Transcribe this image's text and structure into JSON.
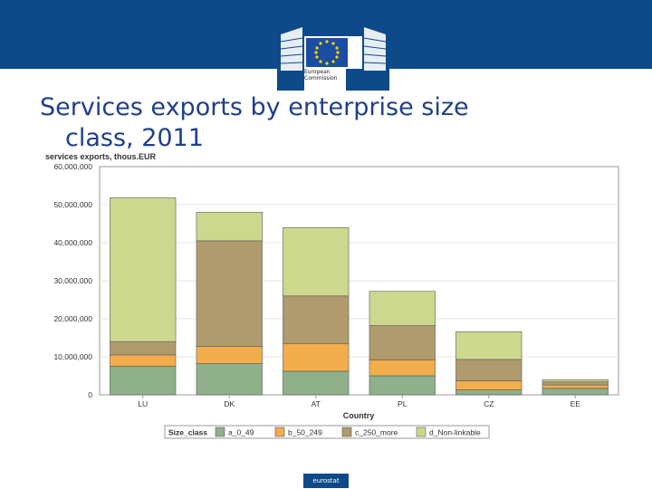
{
  "header": {
    "logo_line1": "European",
    "logo_line2": "Commission"
  },
  "title": {
    "line1": "Services exports by enterprise size",
    "line2": "class, 2011"
  },
  "footer": {
    "badge": "eurostat"
  },
  "colors": {
    "header_band": "#0e4a8a",
    "title_text": "#1f3f8c",
    "plot_border": "#9a9a9a"
  },
  "chart_data": {
    "type": "bar",
    "stacked": true,
    "ylabel": "services exports, thous.EUR",
    "xlabel": "Country",
    "ylim": [
      0,
      60000000
    ],
    "yticks": [
      "60,000,000",
      "50,000,000",
      "40,000,000",
      "30,000,000",
      "20,000,000",
      "10,000,000",
      "0"
    ],
    "ytick_values": [
      60000000,
      50000000,
      40000000,
      30000000,
      20000000,
      10000000,
      0
    ],
    "categories": [
      "LU",
      "DK",
      "AT",
      "PL",
      "CZ",
      "EE"
    ],
    "legend_title": "Size_class",
    "legend_position": "bottom",
    "series": [
      {
        "name": "a_0_49",
        "color": "#8fb08a",
        "values": [
          7500000,
          8200000,
          6200000,
          5000000,
          1300000,
          1700000
        ]
      },
      {
        "name": "b_50_249",
        "color": "#f2ad4c",
        "values": [
          3000000,
          4500000,
          7200000,
          4200000,
          2400000,
          900000
        ]
      },
      {
        "name": "c_250_more",
        "color": "#b09b6e",
        "values": [
          3500000,
          27800000,
          12600000,
          9000000,
          5600000,
          800000
        ]
      },
      {
        "name": "d_Non-linkable",
        "color": "#ccd88d",
        "values": [
          37800000,
          7500000,
          18000000,
          9000000,
          7300000,
          600000
        ]
      }
    ]
  }
}
